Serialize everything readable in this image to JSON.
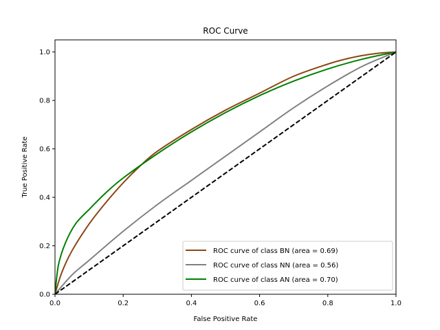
{
  "chart_data": {
    "type": "line",
    "title": "ROC Curve",
    "xlabel": "False Positive Rate",
    "ylabel": "True Positive Rate",
    "xlim": [
      0,
      1
    ],
    "ylim": [
      0,
      1.05
    ],
    "xticks": [
      0,
      0.2,
      0.4,
      0.6,
      0.8,
      1
    ],
    "xtick_labels": [
      "0.0",
      "0.2",
      "0.4",
      "0.6",
      "0.8",
      "1.0"
    ],
    "yticks": [
      0,
      0.2,
      0.4,
      0.6,
      0.8,
      1
    ],
    "ytick_labels": [
      "0.0",
      "0.2",
      "0.4",
      "0.6",
      "0.8",
      "1.0"
    ],
    "grid": false,
    "legend_position": "lower-right",
    "series": [
      {
        "name": "ROC curve of class BN (area = 0.69)",
        "color": "#8B4513",
        "x": [
          0,
          0.02,
          0.05,
          0.1,
          0.15,
          0.2,
          0.25,
          0.3,
          0.4,
          0.5,
          0.6,
          0.7,
          0.8,
          0.85,
          0.9,
          0.95,
          1.0
        ],
        "y": [
          0,
          0.09,
          0.18,
          0.29,
          0.38,
          0.46,
          0.53,
          0.59,
          0.68,
          0.76,
          0.83,
          0.9,
          0.95,
          0.97,
          0.985,
          0.995,
          1.0
        ]
      },
      {
        "name": "ROC curve of class NN (area = 0.56)",
        "color": "#808080",
        "x": [
          0,
          0.05,
          0.1,
          0.2,
          0.3,
          0.4,
          0.5,
          0.6,
          0.7,
          0.8,
          0.9,
          1.0
        ],
        "y": [
          0,
          0.08,
          0.14,
          0.26,
          0.37,
          0.47,
          0.57,
          0.67,
          0.77,
          0.86,
          0.94,
          1.0
        ]
      },
      {
        "name": "ROC curve of class AN (area = 0.70)",
        "color": "#008000",
        "x": [
          0,
          0.01,
          0.03,
          0.06,
          0.1,
          0.15,
          0.2,
          0.3,
          0.4,
          0.5,
          0.6,
          0.7,
          0.8,
          0.9,
          1.0
        ],
        "y": [
          0,
          0.12,
          0.21,
          0.29,
          0.35,
          0.42,
          0.48,
          0.58,
          0.67,
          0.75,
          0.82,
          0.88,
          0.93,
          0.97,
          1.0
        ]
      }
    ],
    "reference_line": {
      "x": [
        0,
        1
      ],
      "y": [
        0,
        1
      ],
      "color": "#000000",
      "style": "dashed"
    }
  }
}
